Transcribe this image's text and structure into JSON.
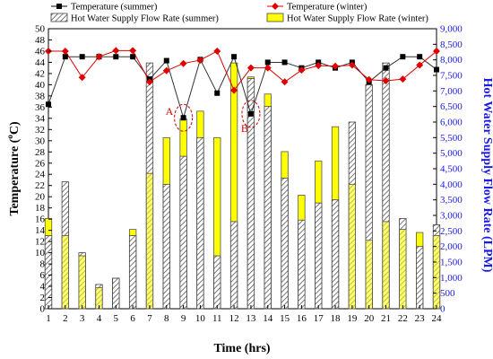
{
  "chart_data": {
    "type": "bar",
    "xlabel": "Time (hrs)",
    "ylabel_left": "Temperature (°C)",
    "ylabel_left_prefix": "Temperature (",
    "ylabel_left_sup": "o",
    "ylabel_left_suffix": "C)",
    "ylabel_right": "Hot Water Supply Flow Rate (LPM)",
    "ylim_left": [
      0,
      50
    ],
    "ylim_right": [
      0,
      9000
    ],
    "x": [
      1,
      2,
      3,
      4,
      5,
      6,
      7,
      8,
      9,
      10,
      11,
      12,
      13,
      14,
      15,
      16,
      17,
      18,
      19,
      20,
      21,
      22,
      23,
      24
    ],
    "left_ticks": [
      0,
      2,
      4,
      6,
      8,
      10,
      12,
      14,
      16,
      18,
      20,
      22,
      24,
      26,
      28,
      30,
      32,
      34,
      36,
      38,
      40,
      42,
      44,
      46,
      48,
      50
    ],
    "right_ticks": [
      "0",
      "500",
      "1,000",
      "1,500",
      "2,000",
      "2,500",
      "3,000",
      "3,500",
      "4,000",
      "4,500",
      "5,000",
      "5,500",
      "6,000",
      "6,500",
      "7,000",
      "7,500",
      "8,000",
      "8,500",
      "9,000"
    ],
    "legend": [
      {
        "label": "Temperature  (summer)",
        "kind": "line",
        "marker": "square",
        "color": "#000000"
      },
      {
        "label": "Temperature  (winter)",
        "kind": "line",
        "marker": "diamond",
        "color": "#e00000"
      },
      {
        "label": "Hot Water Supply Flow Rate (summer)",
        "kind": "bar",
        "pattern": "hatch",
        "color": "#6a6a6a"
      },
      {
        "label": "Hot Water Supply Flow Rate (winter)",
        "kind": "bar",
        "pattern": "solid",
        "color": "#ffff00"
      }
    ],
    "series": [
      {
        "name": "Temperature  (summer)",
        "axis": "left",
        "values": [
          36.5,
          45,
          45,
          45,
          45,
          45,
          41,
          44.3,
          34.1,
          44.5,
          38.5,
          45,
          34.8,
          44,
          44,
          43,
          44,
          43,
          44,
          40.5,
          43,
          45,
          45,
          42.7
        ]
      },
      {
        "name": "Temperature  (winter)",
        "axis": "left",
        "values": [
          46,
          46,
          41.3,
          45,
          46.1,
          46.1,
          40.5,
          42.5,
          43.8,
          44.4,
          46,
          39,
          43,
          43,
          40.5,
          42.6,
          43.4,
          43.3,
          43.5,
          40.9,
          40.7,
          41,
          43.5,
          46
        ]
      },
      {
        "name": "Hot Water Supply Flow Rate (summer)",
        "axis": "right",
        "values": [
          2350,
          4080,
          1800,
          780,
          980,
          2350,
          7900,
          4000,
          4900,
          5500,
          1700,
          2800,
          7400,
          6500,
          4200,
          2850,
          3400,
          3500,
          6000,
          7200,
          7900,
          2900,
          2000,
          2700
        ]
      },
      {
        "name": "Hot Water Supply Flow Rate (winter)",
        "axis": "right",
        "values": [
          2900,
          2350,
          1700,
          680,
          980,
          2550,
          4350,
          5500,
          6100,
          6350,
          5500,
          7900,
          7450,
          6900,
          5050,
          3650,
          4750,
          5850,
          4000,
          2200,
          2800,
          2550,
          2450,
          2350
        ]
      }
    ],
    "annotations": [
      {
        "label": "A",
        "x": 9,
        "y": 34.1
      },
      {
        "label": "B",
        "x": 13,
        "y": 34.8
      }
    ],
    "grid": false
  }
}
